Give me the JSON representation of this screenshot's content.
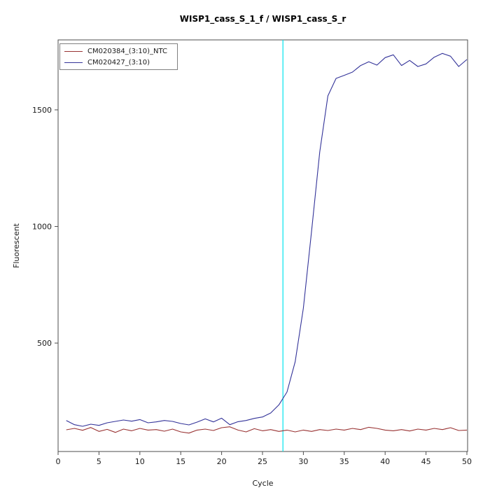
{
  "chart_data": {
    "type": "line",
    "title": "WISP1_cass_S_1_f / WISP1_cass_S_r",
    "xlabel": "Cycle",
    "ylabel": "Fluorescent",
    "xlim": [
      0,
      50
    ],
    "ylim": [
      35,
      1800
    ],
    "xticks": [
      0,
      5,
      10,
      15,
      20,
      25,
      30,
      35,
      40,
      45,
      50
    ],
    "yticks": [
      500,
      1000,
      1500
    ],
    "grid": false,
    "legend_position": "top-left",
    "frame_color": "#4d4d4d",
    "threshold_line": {
      "orientation": "vertical",
      "x": 27.5,
      "color": "#00e5ee"
    },
    "x": [
      1,
      2,
      3,
      4,
      5,
      6,
      7,
      8,
      9,
      10,
      11,
      12,
      13,
      14,
      15,
      16,
      17,
      18,
      19,
      20,
      21,
      22,
      23,
      24,
      25,
      26,
      27,
      28,
      29,
      30,
      31,
      32,
      33,
      34,
      35,
      36,
      37,
      38,
      39,
      40,
      41,
      42,
      43,
      44,
      45,
      46,
      47,
      48,
      49,
      50
    ],
    "series": [
      {
        "name": "CM020384_(3:10)_NTC",
        "color": "#993333",
        "values": [
          128,
          134,
          126,
          138,
          121,
          130,
          117,
          131,
          124,
          134,
          127,
          129,
          122,
          131,
          119,
          114,
          127,
          131,
          125,
          137,
          141,
          127,
          119,
          133,
          124,
          129,
          121,
          127,
          119,
          127,
          121,
          129,
          125,
          131,
          127,
          134,
          129,
          139,
          134,
          127,
          124,
          129,
          123,
          131,
          127,
          134,
          129,
          137,
          125,
          127
        ]
      },
      {
        "name": "CM020427_(3:10)",
        "color": "#333399",
        "values": [
          168,
          150,
          143,
          152,
          147,
          158,
          164,
          170,
          165,
          172,
          158,
          162,
          168,
          164,
          155,
          149,
          161,
          175,
          162,
          178,
          150,
          163,
          168,
          177,
          183,
          200,
          235,
          290,
          420,
          650,
          980,
          1320,
          1560,
          1635,
          1648,
          1662,
          1690,
          1706,
          1692,
          1724,
          1736,
          1690,
          1712,
          1686,
          1697,
          1726,
          1742,
          1730,
          1686,
          1716
        ]
      }
    ]
  }
}
